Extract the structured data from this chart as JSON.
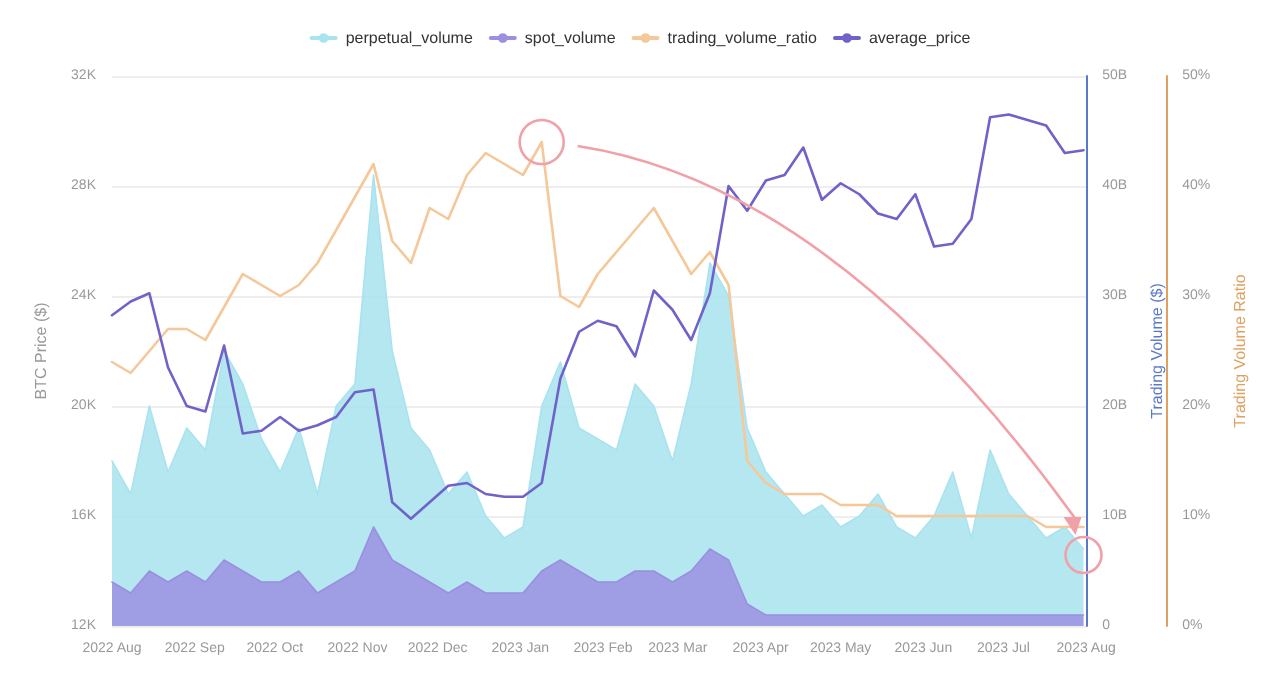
{
  "chart_data": {
    "type": "line",
    "x": [
      "2022-08-01",
      "2022-08-08",
      "2022-08-15",
      "2022-08-22",
      "2022-08-29",
      "2022-09-05",
      "2022-09-12",
      "2022-09-19",
      "2022-09-26",
      "2022-10-03",
      "2022-10-10",
      "2022-10-17",
      "2022-10-24",
      "2022-10-31",
      "2022-11-07",
      "2022-11-14",
      "2022-11-21",
      "2022-11-28",
      "2022-12-05",
      "2022-12-12",
      "2022-12-19",
      "2022-12-26",
      "2023-01-02",
      "2023-01-09",
      "2023-01-16",
      "2023-01-23",
      "2023-01-30",
      "2023-02-06",
      "2023-02-13",
      "2023-02-20",
      "2023-02-27",
      "2023-03-06",
      "2023-03-13",
      "2023-03-20",
      "2023-03-27",
      "2023-04-03",
      "2023-04-10",
      "2023-04-17",
      "2023-04-24",
      "2023-05-01",
      "2023-05-08",
      "2023-05-15",
      "2023-05-22",
      "2023-05-29",
      "2023-06-05",
      "2023-06-12",
      "2023-06-19",
      "2023-06-26",
      "2023-07-03",
      "2023-07-10",
      "2023-07-17",
      "2023-07-24",
      "2023-07-31"
    ],
    "series": [
      {
        "name": "perpetual_volume",
        "type": "area",
        "axis": "y2",
        "color": "#a8e3ef",
        "values": [
          15,
          12,
          20,
          14,
          18,
          16,
          25,
          22,
          17,
          14,
          18,
          12,
          20,
          22,
          41,
          25,
          18,
          16,
          12,
          14,
          10,
          8,
          9,
          20,
          24,
          18,
          17,
          16,
          22,
          20,
          15,
          22,
          33,
          30,
          18,
          14,
          12,
          10,
          11,
          9,
          10,
          12,
          9,
          8,
          10,
          14,
          8,
          16,
          12,
          10,
          8,
          9,
          7
        ]
      },
      {
        "name": "spot_volume",
        "type": "area",
        "axis": "y2",
        "color": "#9b8fe0",
        "values": [
          4,
          3,
          5,
          4,
          5,
          4,
          6,
          5,
          4,
          4,
          5,
          3,
          4,
          5,
          9,
          6,
          5,
          4,
          3,
          4,
          3,
          3,
          3,
          5,
          6,
          5,
          4,
          4,
          5,
          5,
          4,
          5,
          7,
          6,
          2,
          1,
          1,
          1,
          1,
          1,
          1,
          1,
          1,
          1,
          1,
          1,
          1,
          1,
          1,
          1,
          1,
          1,
          1
        ]
      },
      {
        "name": "trading_volume_ratio",
        "axis": "y3",
        "color": "#f5c89a",
        "values": [
          24,
          23,
          25,
          27,
          27,
          26,
          29,
          32,
          31,
          30,
          31,
          33,
          36,
          39,
          42,
          35,
          33,
          38,
          37,
          41,
          43,
          42,
          41,
          44,
          30,
          29,
          32,
          34,
          36,
          38,
          35,
          32,
          34,
          31,
          15,
          13,
          12,
          12,
          12,
          11,
          11,
          11,
          10,
          10,
          10,
          10,
          10,
          10,
          10,
          10,
          9,
          9,
          9
        ]
      },
      {
        "name": "average_price",
        "color": "#6f63c9",
        "values": [
          23300,
          23800,
          24100,
          21400,
          20000,
          19800,
          22200,
          19000,
          19100,
          19600,
          19100,
          19300,
          19600,
          20500,
          20600,
          16500,
          15900,
          16500,
          17100,
          17200,
          16800,
          16700,
          16700,
          17200,
          21000,
          22700,
          23100,
          22900,
          21800,
          24200,
          23500,
          22400,
          24100,
          28000,
          27100,
          28200,
          28400,
          29400,
          27500,
          28100,
          27700,
          27000,
          26800,
          27700,
          25800,
          25900,
          26800,
          30500,
          30600,
          30400,
          30200,
          29200,
          29300
        ]
      }
    ],
    "ylabel": "BTC Price ($)",
    "y2label": "Trading Volume ($)",
    "y3label": "Trading Volume Ratio",
    "xlim": [
      "2022-08-01",
      "2023-08-01"
    ],
    "xticks": [
      {
        "value": "2022-08-01",
        "label": "2022 Aug"
      },
      {
        "value": "2022-09-01",
        "label": "2022 Sep"
      },
      {
        "value": "2022-10-01",
        "label": "2022 Oct"
      },
      {
        "value": "2022-11-01",
        "label": "2022 Nov"
      },
      {
        "value": "2022-12-01",
        "label": "2022 Dec"
      },
      {
        "value": "2023-01-01",
        "label": "2023 Jan"
      },
      {
        "value": "2023-02-01",
        "label": "2023 Feb"
      },
      {
        "value": "2023-03-01",
        "label": "2023 Mar"
      },
      {
        "value": "2023-04-01",
        "label": "2023 Apr"
      },
      {
        "value": "2023-05-01",
        "label": "2023 May"
      },
      {
        "value": "2023-06-01",
        "label": "2023 Jun"
      },
      {
        "value": "2023-07-01",
        "label": "2023 Jul"
      },
      {
        "value": "2023-08-01",
        "label": "2023 Aug"
      }
    ],
    "ylim": [
      12000,
      32000
    ],
    "yticks": [
      {
        "value": 12000,
        "label": "12K"
      },
      {
        "value": 16000,
        "label": "16K"
      },
      {
        "value": 20000,
        "label": "20K"
      },
      {
        "value": 24000,
        "label": "24K"
      },
      {
        "value": 28000,
        "label": "28K"
      },
      {
        "value": 32000,
        "label": "32K"
      }
    ],
    "y2lim": [
      0,
      50
    ],
    "y2ticks": [
      {
        "value": 0,
        "label": "0"
      },
      {
        "value": 10,
        "label": "10B"
      },
      {
        "value": 20,
        "label": "20B"
      },
      {
        "value": 30,
        "label": "30B"
      },
      {
        "value": 40,
        "label": "40B"
      },
      {
        "value": 50,
        "label": "50B"
      }
    ],
    "y3lim": [
      0,
      50
    ],
    "y3ticks": [
      {
        "value": 0,
        "label": "0%"
      },
      {
        "value": 10,
        "label": "10%"
      },
      {
        "value": 20,
        "label": "20%"
      },
      {
        "value": 30,
        "label": "30%"
      },
      {
        "value": 40,
        "label": "40%"
      },
      {
        "value": 50,
        "label": "50%"
      }
    ],
    "grid": "y",
    "legend": "top",
    "marker": "none",
    "line_style": "solid"
  }
}
